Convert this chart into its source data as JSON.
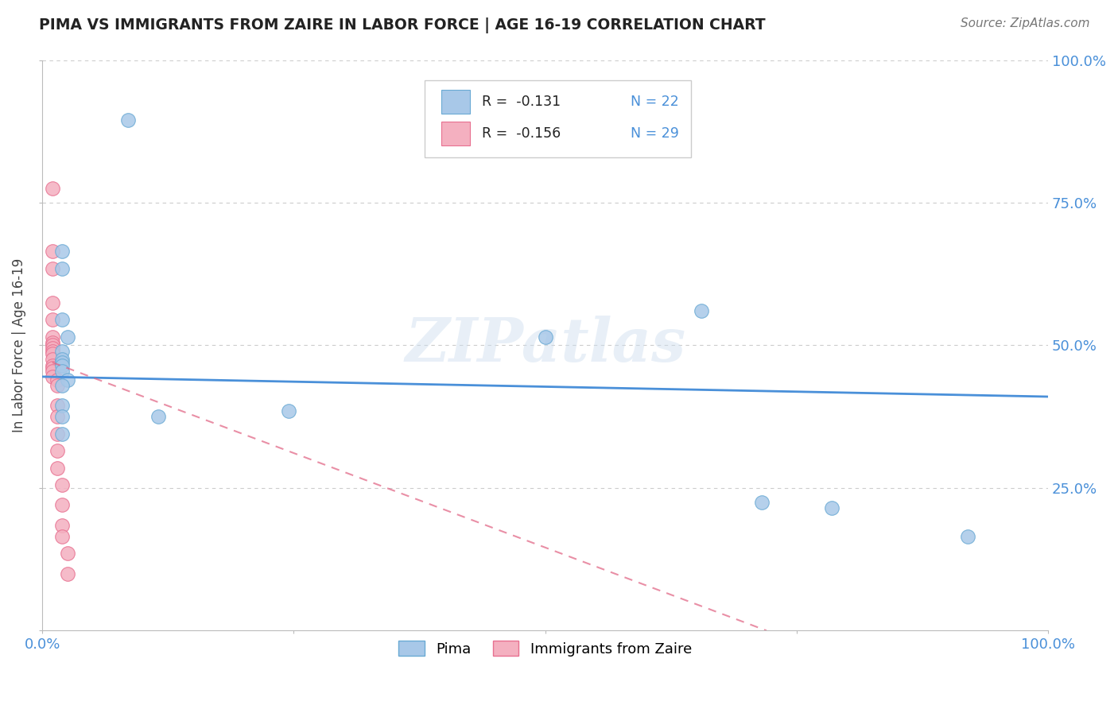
{
  "title": "PIMA VS IMMIGRANTS FROM ZAIRE IN LABOR FORCE | AGE 16-19 CORRELATION CHART",
  "source": "Source: ZipAtlas.com",
  "ylabel": "In Labor Force | Age 16-19",
  "xlim": [
    0.0,
    1.0
  ],
  "ylim": [
    0.0,
    1.0
  ],
  "color_blue": "#a8c8e8",
  "color_pink": "#f4b0c0",
  "color_blue_edge": "#6aaad4",
  "color_pink_edge": "#e87090",
  "color_trend_blue": "#4a90d9",
  "color_trend_pink": "#e06080",
  "color_axis_label": "#4a90d9",
  "legend_r1": "R =  -0.131",
  "legend_n1": "N = 22",
  "legend_r2": "R =  -0.156",
  "legend_n2": "N = 29",
  "watermark": "ZIPatlas",
  "pima_x": [
    0.085,
    0.02,
    0.02,
    0.02,
    0.025,
    0.02,
    0.02,
    0.02,
    0.02,
    0.02,
    0.025,
    0.02,
    0.02,
    0.02,
    0.115,
    0.02,
    0.5,
    0.655,
    0.715,
    0.785,
    0.245,
    0.92
  ],
  "pima_y": [
    0.895,
    0.665,
    0.635,
    0.545,
    0.515,
    0.49,
    0.475,
    0.47,
    0.465,
    0.455,
    0.44,
    0.43,
    0.395,
    0.375,
    0.375,
    0.345,
    0.515,
    0.56,
    0.225,
    0.215,
    0.385,
    0.165
  ],
  "zaire_x": [
    0.01,
    0.01,
    0.01,
    0.01,
    0.01,
    0.01,
    0.01,
    0.01,
    0.01,
    0.01,
    0.01,
    0.01,
    0.01,
    0.01,
    0.01,
    0.01,
    0.015,
    0.015,
    0.015,
    0.015,
    0.015,
    0.015,
    0.015,
    0.02,
    0.02,
    0.02,
    0.02,
    0.025,
    0.025
  ],
  "zaire_y": [
    0.775,
    0.665,
    0.635,
    0.575,
    0.545,
    0.515,
    0.505,
    0.5,
    0.495,
    0.49,
    0.485,
    0.475,
    0.465,
    0.46,
    0.455,
    0.445,
    0.44,
    0.43,
    0.395,
    0.375,
    0.345,
    0.315,
    0.285,
    0.255,
    0.22,
    0.185,
    0.165,
    0.135,
    0.1
  ],
  "blue_trend_x0": 0.0,
  "blue_trend_y0": 0.445,
  "blue_trend_x1": 1.0,
  "blue_trend_y1": 0.41,
  "pink_trend_x0": 0.01,
  "pink_trend_y0": 0.47,
  "pink_trend_x1": 0.72,
  "pink_trend_y1": 0.0
}
